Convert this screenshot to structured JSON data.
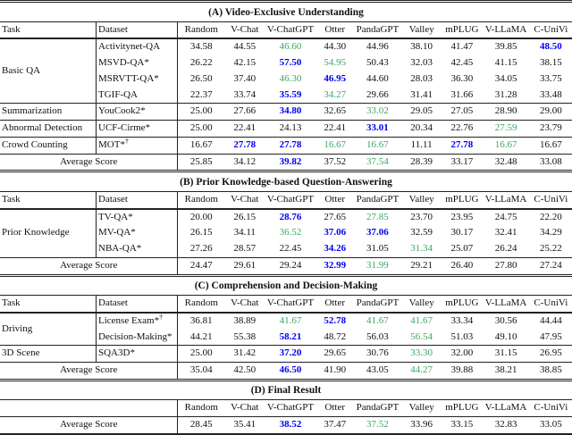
{
  "colors": {
    "best_score": "#0000f0",
    "second_best_score": "#3aa75f",
    "rule": "#222222",
    "text": "#111111"
  },
  "header": {
    "task": "Task",
    "dataset": "Dataset"
  },
  "model_columns": [
    "Random",
    "V-Chat",
    "V-ChatGPT",
    "Otter",
    "PandaGPT",
    "Valley",
    "mPLUG",
    "V-LLaMA",
    "C-UniVi"
  ],
  "average_label": "Average Score",
  "sections": [
    {
      "title": "(A) Video-Exclusive Understanding",
      "show_task_labels": true,
      "groups": [
        {
          "task": "Basic QA",
          "rows": [
            {
              "dataset": "Activitynet-QA",
              "values": [
                "34.58",
                "44.55",
                "46.60",
                "44.30",
                "44.96",
                "38.10",
                "41.47",
                "39.85",
                "48.50"
              ],
              "marks": [
                "",
                "",
                "g",
                "",
                "",
                "",
                "",
                "",
                "b"
              ]
            },
            {
              "dataset": "MSVD-QA*",
              "values": [
                "26.22",
                "42.15",
                "57.50",
                "54.95",
                "50.43",
                "32.03",
                "42.45",
                "41.15",
                "38.15"
              ],
              "marks": [
                "",
                "",
                "b",
                "g",
                "",
                "",
                "",
                "",
                ""
              ]
            },
            {
              "dataset": "MSRVTT-QA*",
              "values": [
                "26.50",
                "37.40",
                "46.30",
                "46.95",
                "44.60",
                "28.03",
                "36.30",
                "34.05",
                "33.75"
              ],
              "marks": [
                "",
                "",
                "g",
                "b",
                "",
                "",
                "",
                "",
                ""
              ]
            },
            {
              "dataset": "TGIF-QA",
              "values": [
                "22.37",
                "33.74",
                "35.59",
                "34.27",
                "29.66",
                "31.41",
                "31.66",
                "31.28",
                "33.48"
              ],
              "marks": [
                "",
                "",
                "b",
                "g",
                "",
                "",
                "",
                "",
                ""
              ]
            }
          ]
        },
        {
          "task": "Summarization",
          "rows": [
            {
              "dataset": "YouCook2*",
              "values": [
                "25.00",
                "27.66",
                "34.80",
                "32.65",
                "33.02",
                "29.05",
                "27.05",
                "28.90",
                "29.00"
              ],
              "marks": [
                "",
                "",
                "b",
                "",
                "g",
                "",
                "",
                "",
                ""
              ]
            }
          ]
        },
        {
          "task": "Abnormal Detection",
          "rows": [
            {
              "dataset": "UCF-Cirme*",
              "values": [
                "25.00",
                "22.41",
                "24.13",
                "22.41",
                "33.01",
                "20.34",
                "22.76",
                "27.59",
                "23.79"
              ],
              "marks": [
                "",
                "",
                "",
                "",
                "b",
                "",
                "",
                "g",
                ""
              ]
            }
          ]
        },
        {
          "task": "Crowd Counting",
          "rows": [
            {
              "dataset": "MOT*",
              "dataset_sup": "†",
              "values": [
                "16.67",
                "27.78",
                "27.78",
                "16.67",
                "16.67",
                "11.11",
                "27.78",
                "16.67",
                "16.67"
              ],
              "marks": [
                "",
                "b",
                "b",
                "g",
                "g",
                "",
                "b",
                "g",
                ""
              ]
            }
          ]
        }
      ],
      "average": {
        "values": [
          "25.85",
          "34.12",
          "39.82",
          "37.52",
          "37.54",
          "28.39",
          "33.17",
          "32.48",
          "33.08"
        ],
        "marks": [
          "",
          "",
          "b",
          "",
          "g",
          "",
          "",
          "",
          ""
        ]
      }
    },
    {
      "title": "(B) Prior Knowledge-based Question-Answering",
      "show_task_labels": true,
      "groups": [
        {
          "task": "Prior Knowledge",
          "rows": [
            {
              "dataset": "TV-QA*",
              "values": [
                "20.00",
                "26.15",
                "28.76",
                "27.65",
                "27.85",
                "23.70",
                "23.95",
                "24.75",
                "22.20"
              ],
              "marks": [
                "",
                "",
                "b",
                "",
                "g",
                "",
                "",
                "",
                ""
              ]
            },
            {
              "dataset": "MV-QA*",
              "values": [
                "26.15",
                "34.11",
                "36.52",
                "37.06",
                "37.06",
                "32.59",
                "30.17",
                "32.41",
                "34.29"
              ],
              "marks": [
                "",
                "",
                "g",
                "b",
                "b",
                "",
                "",
                "",
                ""
              ]
            },
            {
              "dataset": "NBA-QA*",
              "values": [
                "27.26",
                "28.57",
                "22.45",
                "34.26",
                "31.05",
                "31.34",
                "25.07",
                "26.24",
                "25.22"
              ],
              "marks": [
                "",
                "",
                "",
                "b",
                "",
                "g",
                "",
                "",
                ""
              ]
            }
          ]
        }
      ],
      "average": {
        "values": [
          "24.47",
          "29.61",
          "29.24",
          "32.99",
          "31.99",
          "29.21",
          "26.40",
          "27.80",
          "27.24"
        ],
        "marks": [
          "",
          "",
          "",
          "b",
          "g",
          "",
          "",
          "",
          ""
        ]
      }
    },
    {
      "title": "(C) Comprehension and Decision-Making",
      "show_task_labels": true,
      "groups": [
        {
          "task": "Driving",
          "rows": [
            {
              "dataset": "License Exam*",
              "dataset_sup": "†",
              "values": [
                "36.81",
                "38.89",
                "41.67",
                "52.78",
                "41.67",
                "41.67",
                "33.34",
                "30.56",
                "44.44"
              ],
              "marks": [
                "",
                "",
                "g",
                "b",
                "g",
                "g",
                "",
                "",
                ""
              ]
            },
            {
              "dataset": "Decision-Making*",
              "values": [
                "44.21",
                "55.38",
                "58.21",
                "48.72",
                "56.03",
                "56.54",
                "51.03",
                "49.10",
                "47.95"
              ],
              "marks": [
                "",
                "",
                "b",
                "",
                "",
                "g",
                "",
                "",
                ""
              ]
            }
          ]
        },
        {
          "task": "3D Scene",
          "rows": [
            {
              "dataset": "SQA3D*",
              "values": [
                "25.00",
                "31.42",
                "37.20",
                "29.65",
                "30.76",
                "33.30",
                "32.00",
                "31.15",
                "26.95"
              ],
              "marks": [
                "",
                "",
                "b",
                "",
                "",
                "g",
                "",
                "",
                ""
              ]
            }
          ]
        }
      ],
      "average": {
        "values": [
          "35.04",
          "42.50",
          "46.50",
          "41.90",
          "43.05",
          "44.27",
          "39.88",
          "38.21",
          "38.85"
        ],
        "marks": [
          "",
          "",
          "b",
          "",
          "",
          "g",
          "",
          "",
          ""
        ]
      }
    },
    {
      "title": "(D) Final Result",
      "show_task_labels": false,
      "groups": [],
      "average": {
        "values": [
          "28.45",
          "35.41",
          "38.52",
          "37.47",
          "37.52",
          "33.96",
          "33.15",
          "32.83",
          "33.05"
        ],
        "marks": [
          "",
          "",
          "b",
          "",
          "g",
          "",
          "",
          "",
          ""
        ]
      }
    }
  ]
}
